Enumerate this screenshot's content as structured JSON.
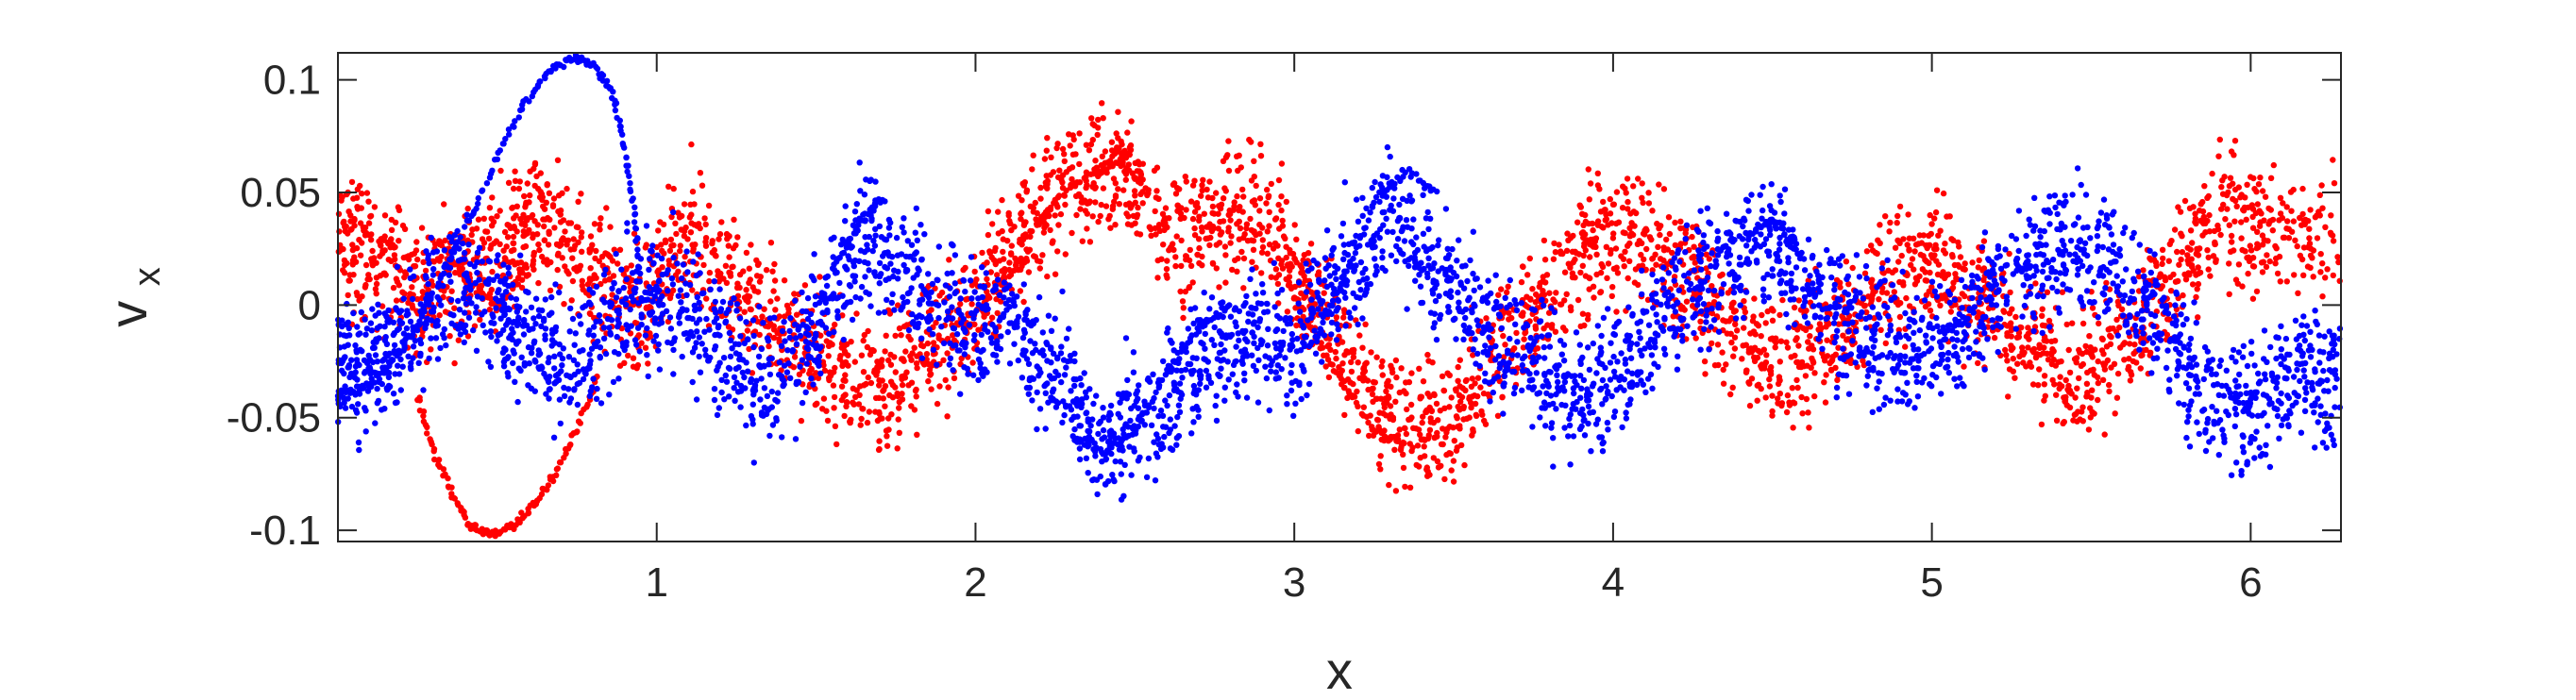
{
  "chart_data": {
    "type": "scatter",
    "title": "",
    "xlabel": "x",
    "ylabel": "v",
    "ylabel_subscript": "x",
    "xlim": [
      0,
      6.2832
    ],
    "ylim": [
      -0.105,
      0.112
    ],
    "xticks": [
      1,
      2,
      3,
      4,
      5,
      6
    ],
    "xtick_labels": [
      "1",
      "2",
      "3",
      "4",
      "5",
      "6"
    ],
    "yticks": [
      -0.1,
      -0.05,
      0,
      0.05,
      0.1
    ],
    "ytick_labels": [
      "-0.1",
      "-0.05",
      "0",
      "0.05",
      "0.1"
    ],
    "grid": false,
    "legend": "none",
    "series": [
      {
        "color": "#ff0000",
        "points_per_segment": 90,
        "noise_band": 0.014,
        "trend": [
          [
            0.0,
            0.032
          ],
          [
            0.12,
            0.022
          ],
          [
            0.25,
            0.006
          ],
          [
            0.4,
            0.012
          ],
          [
            0.55,
            0.028
          ],
          [
            0.65,
            0.04
          ],
          [
            0.8,
            0.015
          ],
          [
            0.95,
            -0.005
          ],
          [
            1.1,
            0.035
          ],
          [
            1.25,
            0.01
          ],
          [
            1.4,
            -0.01
          ],
          [
            1.55,
            -0.03
          ],
          [
            1.7,
            -0.04
          ],
          [
            1.85,
            -0.02
          ],
          [
            2.0,
            0.0
          ],
          [
            2.15,
            0.03
          ],
          [
            2.3,
            0.055
          ],
          [
            2.45,
            0.062
          ],
          [
            2.6,
            0.03
          ],
          [
            2.75,
            0.04
          ],
          [
            2.9,
            0.04
          ],
          [
            3.05,
            0.005
          ],
          [
            3.2,
            -0.03
          ],
          [
            3.35,
            -0.055
          ],
          [
            3.5,
            -0.05
          ],
          [
            3.65,
            -0.02
          ],
          [
            3.8,
            0.005
          ],
          [
            3.95,
            0.03
          ],
          [
            4.1,
            0.03
          ],
          [
            4.25,
            0.01
          ],
          [
            4.4,
            -0.015
          ],
          [
            4.55,
            -0.03
          ],
          [
            4.7,
            -0.01
          ],
          [
            4.85,
            0.01
          ],
          [
            5.0,
            0.02
          ],
          [
            5.15,
            0.005
          ],
          [
            5.3,
            -0.02
          ],
          [
            5.45,
            -0.03
          ],
          [
            5.6,
            -0.015
          ],
          [
            5.75,
            0.01
          ],
          [
            5.9,
            0.04
          ],
          [
            6.05,
            0.03
          ],
          [
            6.28,
            0.03
          ]
        ],
        "filaments": [
          [
            [
              0.25,
              -0.04
            ],
            [
              0.3,
              -0.065
            ],
            [
              0.36,
              -0.085
            ],
            [
              0.42,
              -0.098
            ],
            [
              0.48,
              -0.102
            ],
            [
              0.55,
              -0.098
            ],
            [
              0.62,
              -0.088
            ],
            [
              0.68,
              -0.075
            ],
            [
              0.75,
              -0.055
            ],
            [
              0.82,
              -0.03
            ]
          ],
          [
            [
              0.3,
              0.03
            ],
            [
              0.4,
              0.012
            ],
            [
              0.5,
              -0.002
            ],
            [
              0.6,
              0.018
            ]
          ],
          [
            [
              2.15,
              0.028
            ],
            [
              2.25,
              0.046
            ],
            [
              2.35,
              0.058
            ],
            [
              2.45,
              0.064
            ],
            [
              2.55,
              0.05
            ]
          ],
          [
            [
              2.95,
              0.02
            ],
            [
              3.05,
              -0.01
            ],
            [
              3.15,
              -0.035
            ],
            [
              3.25,
              -0.055
            ],
            [
              3.35,
              -0.062
            ]
          ],
          [
            [
              1.95,
              -0.01
            ],
            [
              2.05,
              0.005
            ],
            [
              2.15,
              0.022
            ]
          ]
        ]
      },
      {
        "color": "#0000ff",
        "points_per_segment": 90,
        "noise_band": 0.014,
        "trend": [
          [
            0.0,
            -0.025
          ],
          [
            0.1,
            -0.03
          ],
          [
            0.2,
            -0.015
          ],
          [
            0.35,
            0.01
          ],
          [
            0.5,
            0.0
          ],
          [
            0.6,
            -0.02
          ],
          [
            0.75,
            -0.025
          ],
          [
            0.9,
            0.0
          ],
          [
            1.05,
            0.005
          ],
          [
            1.2,
            -0.02
          ],
          [
            1.35,
            -0.035
          ],
          [
            1.5,
            -0.01
          ],
          [
            1.65,
            0.03
          ],
          [
            1.8,
            0.01
          ],
          [
            1.95,
            -0.01
          ],
          [
            2.1,
            -0.005
          ],
          [
            2.25,
            -0.03
          ],
          [
            2.4,
            -0.06
          ],
          [
            2.55,
            -0.05
          ],
          [
            2.7,
            -0.025
          ],
          [
            2.85,
            -0.01
          ],
          [
            3.0,
            -0.02
          ],
          [
            3.15,
            0.015
          ],
          [
            3.3,
            0.045
          ],
          [
            3.45,
            0.01
          ],
          [
            3.6,
            -0.01
          ],
          [
            3.75,
            -0.03
          ],
          [
            3.9,
            -0.04
          ],
          [
            4.05,
            -0.025
          ],
          [
            4.2,
            0.0
          ],
          [
            4.35,
            0.02
          ],
          [
            4.5,
            0.03
          ],
          [
            4.65,
            0.005
          ],
          [
            4.8,
            -0.015
          ],
          [
            4.95,
            -0.02
          ],
          [
            5.1,
            -0.01
          ],
          [
            5.25,
            0.015
          ],
          [
            5.4,
            0.025
          ],
          [
            5.55,
            0.02
          ],
          [
            5.7,
            -0.005
          ],
          [
            5.85,
            -0.04
          ],
          [
            6.0,
            -0.045
          ],
          [
            6.15,
            -0.03
          ],
          [
            6.28,
            -0.035
          ]
        ],
        "filaments": [
          [
            [
              0.0,
              -0.04
            ],
            [
              0.1,
              -0.035
            ],
            [
              0.2,
              -0.02
            ],
            [
              0.3,
              0.005
            ],
            [
              0.4,
              0.035
            ],
            [
              0.5,
              0.065
            ],
            [
              0.58,
              0.088
            ],
            [
              0.66,
              0.103
            ],
            [
              0.74,
              0.11
            ],
            [
              0.8,
              0.107
            ],
            [
              0.86,
              0.095
            ],
            [
              0.9,
              0.07
            ],
            [
              0.93,
              0.04
            ],
            [
              0.95,
              0.01
            ]
          ],
          [
            [
              1.55,
              0.015
            ],
            [
              1.65,
              0.04
            ],
            [
              1.72,
              0.048
            ]
          ],
          [
            [
              2.3,
              -0.058
            ],
            [
              2.4,
              -0.066
            ],
            [
              2.5,
              -0.055
            ],
            [
              2.6,
              -0.03
            ],
            [
              2.7,
              -0.01
            ],
            [
              2.8,
              0.0
            ]
          ],
          [
            [
              3.05,
              -0.02
            ],
            [
              3.15,
              0.01
            ],
            [
              3.25,
              0.045
            ],
            [
              3.35,
              0.06
            ],
            [
              3.45,
              0.05
            ]
          ],
          [
            [
              4.4,
              0.03
            ],
            [
              4.5,
              0.038
            ],
            [
              4.6,
              0.02
            ]
          ]
        ]
      }
    ]
  }
}
